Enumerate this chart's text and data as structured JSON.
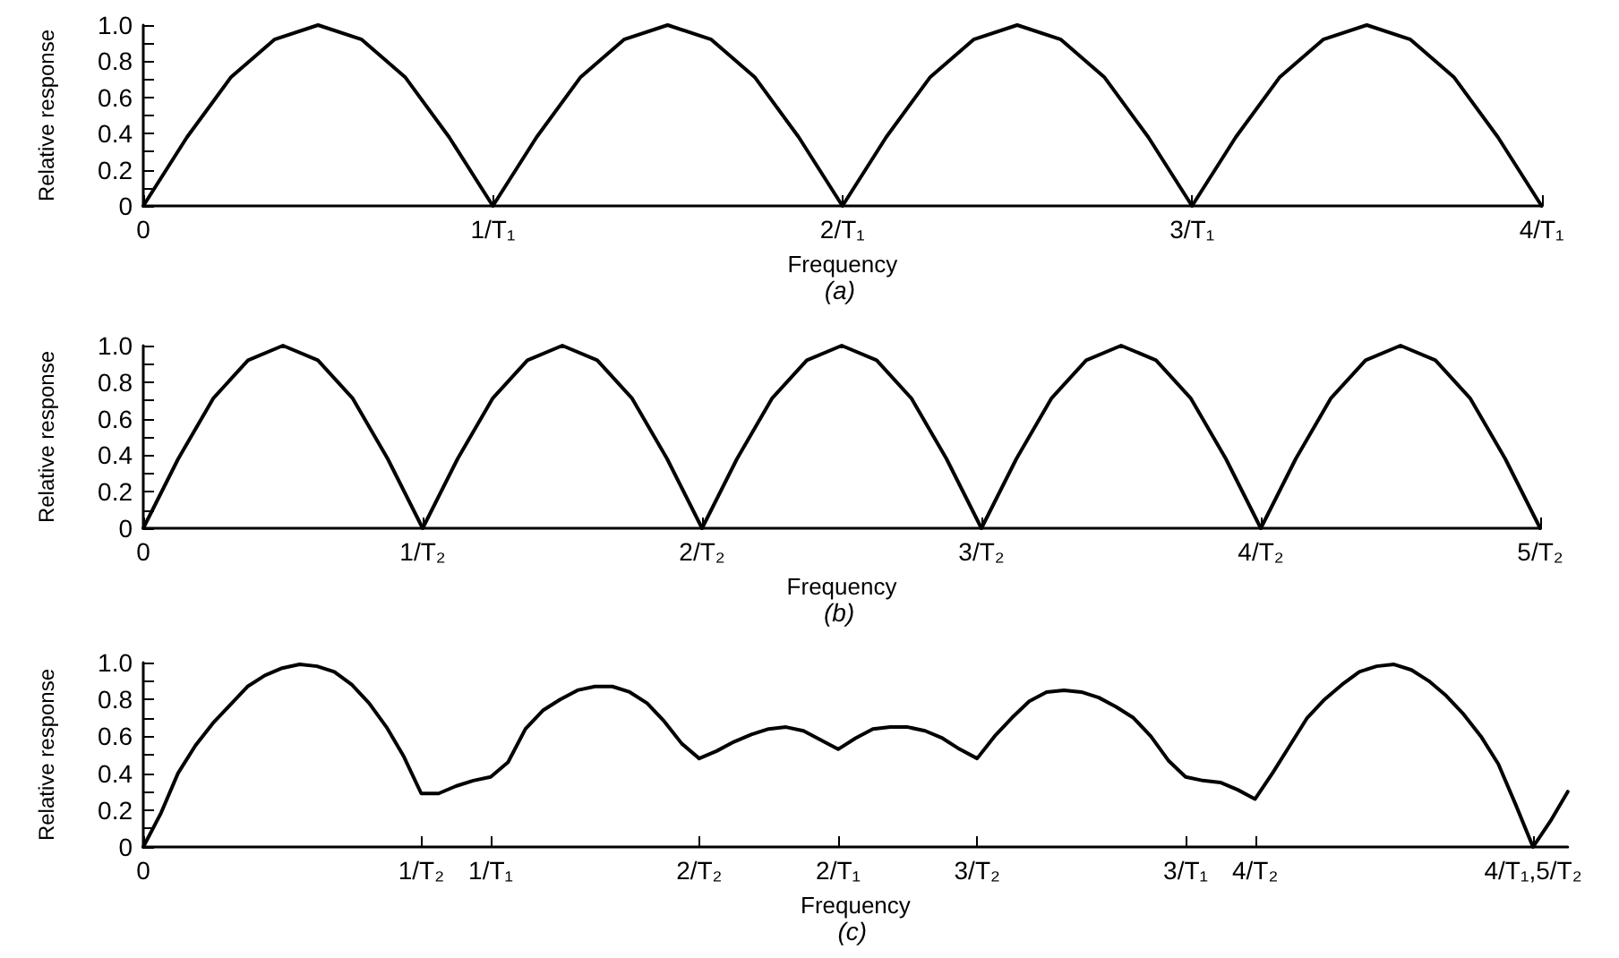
{
  "chart_data": [
    {
      "type": "line",
      "xlabel": "Frequency",
      "ylabel": "Relative response",
      "annotations": [
        "(a)"
      ],
      "categories": [
        "0",
        null,
        null,
        null,
        null,
        null,
        null,
        null,
        "1/T₁",
        null,
        null,
        null,
        null,
        null,
        null,
        null,
        "2/T₁",
        null,
        null,
        null,
        null,
        null,
        null,
        null,
        "3/T₁",
        null,
        null,
        null,
        null,
        null,
        null,
        null,
        "4/T₁"
      ],
      "ylim": [
        0,
        1
      ],
      "yticks": [
        {
          "value": 0,
          "label": "0"
        },
        {
          "value": 0.1,
          "label": null
        },
        {
          "value": 0.2,
          "label": "0.2"
        },
        {
          "value": 0.3,
          "label": null
        },
        {
          "value": 0.4,
          "label": "0.4"
        },
        {
          "value": 0.5,
          "label": null
        },
        {
          "value": 0.6,
          "label": "0.6"
        },
        {
          "value": 0.7,
          "label": null
        },
        {
          "value": 0.8,
          "label": "0.8"
        },
        {
          "value": 0.9,
          "label": null
        },
        {
          "value": 1,
          "label": "1.0"
        }
      ],
      "marker": "none",
      "line_style": "solid",
      "series": [
        {
          "color": "#000000",
          "values": [
            0,
            0.38,
            0.71,
            0.92,
            1,
            0.92,
            0.71,
            0.38,
            0,
            0.38,
            0.71,
            0.92,
            1,
            0.92,
            0.71,
            0.38,
            0,
            0.38,
            0.71,
            0.92,
            1,
            0.92,
            0.71,
            0.38,
            0,
            0.38,
            0.71,
            0.92,
            1,
            0.92,
            0.71,
            0.38,
            0
          ]
        }
      ]
    },
    {
      "type": "line",
      "xlabel": "Frequency",
      "ylabel": "Relative response",
      "annotations": [
        "(b)"
      ],
      "categories": [
        "0",
        null,
        null,
        null,
        null,
        null,
        null,
        null,
        "1/T₂",
        null,
        null,
        null,
        null,
        null,
        null,
        null,
        "2/T₂",
        null,
        null,
        null,
        null,
        null,
        null,
        null,
        "3/T₂",
        null,
        null,
        null,
        null,
        null,
        null,
        null,
        "4/T₂",
        null,
        null,
        null,
        null,
        null,
        null,
        null,
        "5/T₂"
      ],
      "ylim": [
        0,
        1
      ],
      "yticks": [
        {
          "value": 0,
          "label": "0"
        },
        {
          "value": 0.1,
          "label": null
        },
        {
          "value": 0.2,
          "label": "0.2"
        },
        {
          "value": 0.3,
          "label": null
        },
        {
          "value": 0.4,
          "label": "0.4"
        },
        {
          "value": 0.5,
          "label": null
        },
        {
          "value": 0.6,
          "label": "0.6"
        },
        {
          "value": 0.7,
          "label": null
        },
        {
          "value": 0.8,
          "label": "0.8"
        },
        {
          "value": 0.9,
          "label": null
        },
        {
          "value": 1,
          "label": "1.0"
        }
      ],
      "marker": "none",
      "line_style": "solid",
      "series": [
        {
          "color": "#000000",
          "values": [
            0,
            0.38,
            0.71,
            0.92,
            1,
            0.92,
            0.71,
            0.38,
            0,
            0.38,
            0.71,
            0.92,
            1,
            0.92,
            0.71,
            0.38,
            0,
            0.38,
            0.71,
            0.92,
            1,
            0.92,
            0.71,
            0.38,
            0,
            0.38,
            0.71,
            0.92,
            1,
            0.92,
            0.71,
            0.38,
            0,
            0.38,
            0.71,
            0.92,
            1,
            0.92,
            0.71,
            0.38,
            0
          ]
        }
      ]
    },
    {
      "type": "line",
      "xlabel": "Frequency",
      "ylabel": "Relative response",
      "annotations": [
        "(c)"
      ],
      "categories": [
        "0",
        null,
        null,
        null,
        null,
        null,
        null,
        null,
        null,
        null,
        null,
        null,
        null,
        null,
        null,
        null,
        "1/T₂",
        null,
        null,
        null,
        "1/T₁",
        null,
        null,
        null,
        null,
        null,
        null,
        null,
        null,
        null,
        null,
        null,
        "2/T₂",
        null,
        null,
        null,
        null,
        null,
        null,
        null,
        "2/T₁",
        null,
        null,
        null,
        null,
        null,
        null,
        null,
        "3/T₂",
        null,
        null,
        null,
        null,
        null,
        null,
        null,
        null,
        null,
        null,
        null,
        "3/T₁",
        null,
        null,
        null,
        "4/T₂",
        null,
        null,
        null,
        null,
        null,
        null,
        null,
        null,
        null,
        null,
        null,
        null,
        null,
        null,
        null,
        "4/T₁,5/T₂",
        null,
        null
      ],
      "ylim": [
        0,
        1
      ],
      "yticks": [
        {
          "value": 0,
          "label": "0"
        },
        {
          "value": 0.1,
          "label": null
        },
        {
          "value": 0.2,
          "label": "0.2"
        },
        {
          "value": 0.3,
          "label": null
        },
        {
          "value": 0.4,
          "label": "0.4"
        },
        {
          "value": 0.5,
          "label": null
        },
        {
          "value": 0.6,
          "label": "0.6"
        },
        {
          "value": 0.7,
          "label": null
        },
        {
          "value": 0.8,
          "label": "0.8"
        },
        {
          "value": 0.9,
          "label": null
        },
        {
          "value": 1,
          "label": "1.0"
        }
      ],
      "marker": "none",
      "line_style": "solid",
      "series": [
        {
          "color": "#000000",
          "values": [
            0,
            0.18,
            0.4,
            0.55,
            0.67,
            0.77,
            0.87,
            0.93,
            0.97,
            0.99,
            0.98,
            0.95,
            0.88,
            0.78,
            0.65,
            0.49,
            0.29,
            0.29,
            0.33,
            0.36,
            0.38,
            0.46,
            0.64,
            0.74,
            0.8,
            0.85,
            0.87,
            0.87,
            0.84,
            0.78,
            0.68,
            0.56,
            0.48,
            0.52,
            0.57,
            0.61,
            0.64,
            0.65,
            0.63,
            0.58,
            0.53,
            0.59,
            0.64,
            0.65,
            0.65,
            0.63,
            0.59,
            0.53,
            0.48,
            0.6,
            0.7,
            0.79,
            0.84,
            0.85,
            0.84,
            0.81,
            0.76,
            0.7,
            0.6,
            0.47,
            0.38,
            0.36,
            0.35,
            0.31,
            0.26,
            0.4,
            0.55,
            0.7,
            0.8,
            0.88,
            0.95,
            0.98,
            0.99,
            0.96,
            0.9,
            0.82,
            0.72,
            0.6,
            0.45,
            0.23,
            0,
            0.14,
            0.3
          ]
        }
      ]
    }
  ]
}
